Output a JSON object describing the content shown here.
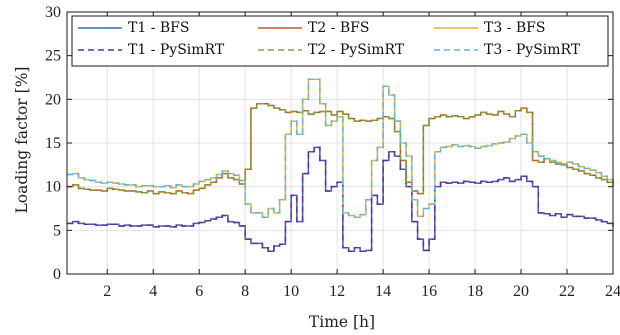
{
  "chart_data": {
    "type": "line",
    "step": true,
    "xlabel": "Time [h]",
    "ylabel": "Loading factor [%]",
    "xlim": [
      0.25,
      24
    ],
    "ylim": [
      0,
      30
    ],
    "xticks": [
      2,
      4,
      6,
      8,
      10,
      12,
      14,
      16,
      18,
      20,
      22,
      24
    ],
    "yticks": [
      0,
      5,
      10,
      15,
      20,
      25,
      30
    ],
    "grid": true,
    "legend_position": "top, two rows of three columns",
    "colors": {
      "T1": "#3566b4",
      "T2": "#c4572a",
      "T3": "#e8b130",
      "T1_pysim": "#6b2c8c",
      "T2_pysim": "#7ba538",
      "T3_pysim": "#5cb6e3"
    },
    "x": [
      0.25,
      0.5,
      0.75,
      1.0,
      1.25,
      1.5,
      1.75,
      2.0,
      2.25,
      2.5,
      2.75,
      3.0,
      3.25,
      3.5,
      3.75,
      4.0,
      4.25,
      4.5,
      4.75,
      5.0,
      5.25,
      5.5,
      5.75,
      6.0,
      6.25,
      6.5,
      6.75,
      7.0,
      7.25,
      7.5,
      7.75,
      8.0,
      8.25,
      8.5,
      8.75,
      9.0,
      9.25,
      9.5,
      9.75,
      10.0,
      10.25,
      10.5,
      10.75,
      11.0,
      11.25,
      11.5,
      11.75,
      12.0,
      12.25,
      12.5,
      12.75,
      13.0,
      13.25,
      13.5,
      13.75,
      14.0,
      14.25,
      14.5,
      14.75,
      15.0,
      15.25,
      15.5,
      15.75,
      16.0,
      16.25,
      16.5,
      16.75,
      17.0,
      17.25,
      17.5,
      17.75,
      18.0,
      18.25,
      18.5,
      18.75,
      19.0,
      19.25,
      19.5,
      19.75,
      20.0,
      20.25,
      20.5,
      20.75,
      21.0,
      21.25,
      21.5,
      21.75,
      22.0,
      22.25,
      22.5,
      22.75,
      23.0,
      23.25,
      23.5,
      23.75,
      24.0
    ],
    "series": [
      {
        "name": "T1 - BFS",
        "color_key": "T1",
        "dash": "solid",
        "values": [
          5.8,
          6.0,
          5.8,
          5.7,
          5.7,
          5.6,
          5.6,
          5.7,
          5.7,
          5.5,
          5.6,
          5.5,
          5.5,
          5.6,
          5.6,
          5.4,
          5.5,
          5.5,
          5.4,
          5.6,
          5.5,
          5.5,
          5.8,
          5.9,
          6.1,
          6.3,
          6.5,
          6.7,
          6.0,
          5.9,
          5.5,
          4.0,
          3.5,
          3.5,
          3.0,
          2.6,
          3.2,
          3.4,
          6.0,
          9.0,
          6.0,
          11.5,
          14.0,
          14.5,
          13.0,
          9.5,
          10.0,
          10.5,
          3.0,
          2.6,
          3.0,
          2.6,
          2.7,
          9.0,
          8.0,
          13.0,
          14.0,
          13.5,
          12.0,
          10.0,
          6.0,
          4.0,
          2.7,
          4.0,
          10.0,
          10.5,
          10.4,
          10.5,
          10.4,
          10.6,
          10.5,
          10.4,
          10.6,
          10.5,
          10.6,
          10.8,
          11.0,
          10.6,
          10.8,
          11.2,
          10.6,
          10.0,
          7.0,
          6.9,
          6.7,
          6.9,
          6.5,
          6.8,
          6.6,
          6.6,
          6.4,
          6.4,
          6.2,
          6.0,
          5.8,
          5.4
        ]
      },
      {
        "name": "T2 - BFS",
        "color_key": "T2",
        "dash": "solid",
        "values": [
          10.0,
          10.2,
          9.8,
          9.7,
          9.6,
          9.6,
          9.5,
          9.8,
          9.7,
          9.6,
          9.5,
          9.5,
          9.4,
          9.3,
          9.5,
          9.2,
          9.4,
          9.3,
          9.2,
          9.5,
          9.3,
          9.2,
          9.6,
          9.8,
          10.2,
          10.5,
          11.0,
          11.5,
          11.0,
          10.8,
          10.3,
          12.0,
          19.0,
          19.5,
          19.5,
          19.3,
          19.0,
          18.8,
          18.5,
          18.6,
          18.5,
          18.7,
          18.3,
          18.5,
          18.6,
          18.6,
          18.2,
          18.6,
          18.3,
          17.8,
          17.5,
          17.6,
          17.5,
          17.6,
          17.8,
          18.0,
          17.8,
          16.3,
          13.0,
          10.5,
          9.5,
          9.2,
          17.0,
          17.8,
          18.0,
          18.2,
          18.0,
          18.1,
          18.0,
          17.8,
          18.0,
          18.2,
          18.5,
          18.3,
          18.2,
          18.6,
          18.3,
          18.0,
          18.7,
          19.0,
          18.5,
          13.0,
          12.8,
          13.2,
          12.8,
          12.6,
          12.5,
          12.2,
          12.0,
          11.8,
          11.5,
          11.3,
          11.0,
          10.8,
          10.5,
          10.0
        ]
      },
      {
        "name": "T3 - BFS",
        "color_key": "T3",
        "dash": "solid",
        "values": [
          11.4,
          11.5,
          11.0,
          10.8,
          10.7,
          10.5,
          10.4,
          10.5,
          10.4,
          10.3,
          10.2,
          10.2,
          10.0,
          10.1,
          10.1,
          10.0,
          10.0,
          10.1,
          9.9,
          10.2,
          10.0,
          10.0,
          10.3,
          10.6,
          10.8,
          11.0,
          11.4,
          11.8,
          11.5,
          11.3,
          10.7,
          8.0,
          7.0,
          7.0,
          6.5,
          7.5,
          7.0,
          8.5,
          16.0,
          17.5,
          16.0,
          20.0,
          22.3,
          22.3,
          19.5,
          17.0,
          17.5,
          18.0,
          7.0,
          6.7,
          6.5,
          6.8,
          8.5,
          13.0,
          14.5,
          21.5,
          20.5,
          17.5,
          15.0,
          13.5,
          8.5,
          6.6,
          7.5,
          8.0,
          14.0,
          14.5,
          14.6,
          14.8,
          14.6,
          14.7,
          14.6,
          14.4,
          14.6,
          14.7,
          14.9,
          15.0,
          15.1,
          15.5,
          15.8,
          16.0,
          15.0,
          14.0,
          13.5,
          13.2,
          13.0,
          12.8,
          12.6,
          12.8,
          12.6,
          12.3,
          12.1,
          11.9,
          11.6,
          11.2,
          10.8,
          10.5
        ]
      },
      {
        "name": "T1 - PySimRT",
        "color_key": "T1_pysim",
        "dash": "dashed",
        "values": [
          5.8,
          6.0,
          5.8,
          5.7,
          5.7,
          5.6,
          5.6,
          5.7,
          5.7,
          5.5,
          5.6,
          5.5,
          5.5,
          5.6,
          5.6,
          5.4,
          5.5,
          5.5,
          5.4,
          5.6,
          5.5,
          5.5,
          5.8,
          5.9,
          6.1,
          6.3,
          6.5,
          6.7,
          6.0,
          5.9,
          5.5,
          4.0,
          3.5,
          3.5,
          3.0,
          2.6,
          3.2,
          3.4,
          6.0,
          9.0,
          6.0,
          11.5,
          14.0,
          14.5,
          13.0,
          9.5,
          10.0,
          10.5,
          3.0,
          2.6,
          3.0,
          2.6,
          2.7,
          9.0,
          8.0,
          13.0,
          14.0,
          13.5,
          12.0,
          10.0,
          6.0,
          4.0,
          2.7,
          4.0,
          10.0,
          10.5,
          10.4,
          10.5,
          10.4,
          10.6,
          10.5,
          10.4,
          10.6,
          10.5,
          10.6,
          10.8,
          11.0,
          10.6,
          10.8,
          11.2,
          10.6,
          10.0,
          7.0,
          6.9,
          6.7,
          6.9,
          6.5,
          6.8,
          6.6,
          6.6,
          6.4,
          6.4,
          6.2,
          6.0,
          5.8,
          5.4
        ]
      },
      {
        "name": "T2 - PySimRT",
        "color_key": "T2_pysim",
        "dash": "dashed",
        "values": [
          10.0,
          10.2,
          9.8,
          9.7,
          9.6,
          9.6,
          9.5,
          9.8,
          9.7,
          9.6,
          9.5,
          9.5,
          9.4,
          9.3,
          9.5,
          9.2,
          9.4,
          9.3,
          9.2,
          9.5,
          9.3,
          9.2,
          9.6,
          9.8,
          10.2,
          10.5,
          11.0,
          11.5,
          11.0,
          10.8,
          10.3,
          12.0,
          19.0,
          19.5,
          19.5,
          19.3,
          19.0,
          18.8,
          18.5,
          18.6,
          18.5,
          18.7,
          18.3,
          18.5,
          18.6,
          18.6,
          18.2,
          18.6,
          18.3,
          17.8,
          17.5,
          17.6,
          17.5,
          17.6,
          17.8,
          18.0,
          17.8,
          16.3,
          13.0,
          10.5,
          9.5,
          9.2,
          17.0,
          17.8,
          18.0,
          18.2,
          18.0,
          18.1,
          18.0,
          17.8,
          18.0,
          18.2,
          18.5,
          18.3,
          18.2,
          18.6,
          18.3,
          18.0,
          18.7,
          19.0,
          18.5,
          13.0,
          12.8,
          13.2,
          12.8,
          12.6,
          12.5,
          12.2,
          12.0,
          11.8,
          11.5,
          11.3,
          11.0,
          10.8,
          10.5,
          10.0
        ]
      },
      {
        "name": "T3 - PySimRT",
        "color_key": "T3_pysim",
        "dash": "dashed",
        "values": [
          11.4,
          11.5,
          11.0,
          10.8,
          10.7,
          10.5,
          10.4,
          10.5,
          10.4,
          10.3,
          10.2,
          10.2,
          10.0,
          10.1,
          10.1,
          10.0,
          10.0,
          10.1,
          9.9,
          10.2,
          10.0,
          10.0,
          10.3,
          10.6,
          10.8,
          11.0,
          11.4,
          11.8,
          11.5,
          11.3,
          10.7,
          8.0,
          7.0,
          7.0,
          6.5,
          7.5,
          7.0,
          8.5,
          16.0,
          17.5,
          16.0,
          20.0,
          22.3,
          22.3,
          19.5,
          17.0,
          17.5,
          18.0,
          7.0,
          6.7,
          6.5,
          6.8,
          8.5,
          13.0,
          14.5,
          21.5,
          20.5,
          17.5,
          15.0,
          13.5,
          8.5,
          6.6,
          7.5,
          8.0,
          14.0,
          14.5,
          14.6,
          14.8,
          14.6,
          14.7,
          14.6,
          14.4,
          14.6,
          14.7,
          14.9,
          15.0,
          15.1,
          15.5,
          15.8,
          16.0,
          15.0,
          14.0,
          13.5,
          13.2,
          13.0,
          12.8,
          12.6,
          12.8,
          12.6,
          12.3,
          12.1,
          11.9,
          11.6,
          11.2,
          10.8,
          10.5
        ]
      }
    ]
  }
}
